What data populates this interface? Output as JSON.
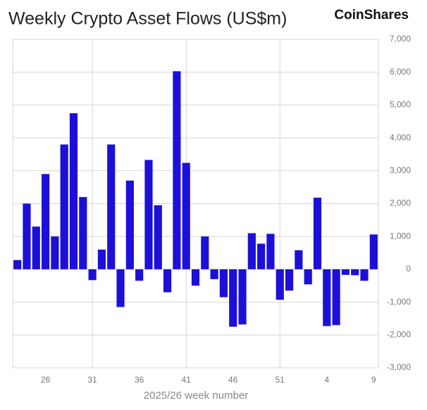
{
  "chart_data": {
    "type": "bar",
    "title": "Weekly Crypto Asset Flows (US$m)",
    "brand": "CoinShares",
    "x_label": "2025/26 week number",
    "categories": [
      null,
      null,
      null,
      "26",
      null,
      null,
      null,
      null,
      "31",
      null,
      null,
      null,
      null,
      "36",
      null,
      null,
      null,
      null,
      "41",
      null,
      null,
      null,
      null,
      "46",
      null,
      null,
      null,
      null,
      "51",
      null,
      null,
      null,
      null,
      "4",
      null,
      null,
      null,
      null,
      "9"
    ],
    "values": [
      280,
      2000,
      1300,
      2900,
      1000,
      3800,
      4750,
      2200,
      -330,
      600,
      3800,
      -1150,
      2700,
      -350,
      3330,
      1950,
      -700,
      6030,
      3240,
      -500,
      1000,
      -300,
      -850,
      -1750,
      -1680,
      1100,
      780,
      1080,
      -930,
      -650,
      580,
      -460,
      2180,
      -1730,
      -1700,
      -170,
      -180,
      -350,
      1060
    ],
    "color": "#1c10d8",
    "ylim": [
      -3000,
      7000
    ],
    "yticks": [
      {
        "value": -3000,
        "label": "-3,000"
      },
      {
        "value": -2000,
        "label": "-2,000"
      },
      {
        "value": -1000,
        "label": "-1,000"
      },
      0,
      {
        "value": 1000,
        "label": "1,000"
      },
      {
        "value": 2000,
        "label": "2,000"
      },
      {
        "value": 3000,
        "label": "3,000"
      },
      {
        "value": 4000,
        "label": "4,000"
      },
      {
        "value": 5000,
        "label": "5,000"
      },
      {
        "value": 6000,
        "label": "6,000"
      },
      {
        "value": 7000,
        "label": "7,000"
      }
    ],
    "grid": true,
    "y_axis_side": "right"
  }
}
